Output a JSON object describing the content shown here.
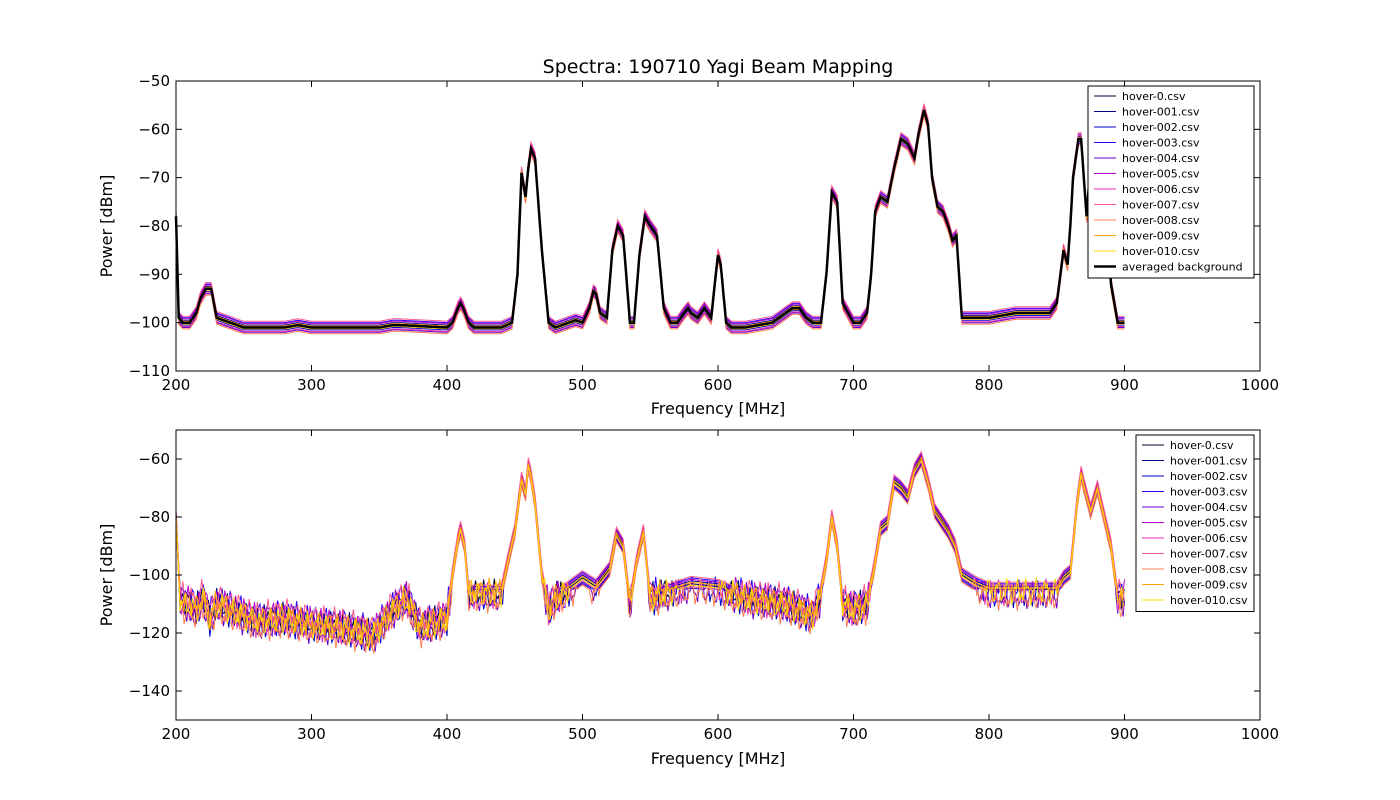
{
  "chart_data": [
    {
      "type": "line",
      "title": "Spectra: 190710 Yagi Beam Mapping",
      "xlabel": "Frequency [MHz]",
      "ylabel": "Power [dBm]",
      "xlim": [
        200,
        1000
      ],
      "ylim": [
        -110,
        -50
      ],
      "xticks": [
        200,
        300,
        400,
        500,
        600,
        700,
        800,
        900,
        1000
      ],
      "yticks": [
        -110,
        -100,
        -90,
        -80,
        -70,
        -60,
        -50
      ],
      "legend_position": "upper-right",
      "grid": false,
      "series": [
        {
          "name": "hover-0.csv",
          "color": "#000033",
          "offset": 0,
          "width": 1
        },
        {
          "name": "hover-001.csv",
          "color": "#00008b",
          "offset": 0.5,
          "width": 1
        },
        {
          "name": "hover-002.csv",
          "color": "#0000cc",
          "offset": -0.5,
          "width": 1
        },
        {
          "name": "hover-003.csv",
          "color": "#2a00ff",
          "offset": 1,
          "width": 1
        },
        {
          "name": "hover-004.csv",
          "color": "#6600cc",
          "offset": -1,
          "width": 1
        },
        {
          "name": "hover-005.csv",
          "color": "#b300cc",
          "offset": 0.8,
          "width": 1
        },
        {
          "name": "hover-006.csv",
          "color": "#e632b4",
          "offset": -0.8,
          "width": 1
        },
        {
          "name": "hover-007.csv",
          "color": "#ff5a8c",
          "offset": 1.3,
          "width": 1
        },
        {
          "name": "hover-008.csv",
          "color": "#ff7f50",
          "offset": -1.3,
          "width": 1
        },
        {
          "name": "hover-009.csv",
          "color": "#ffa500",
          "offset": 0.3,
          "width": 1
        },
        {
          "name": "hover-010.csv",
          "color": "#ffd700",
          "offset": -0.3,
          "width": 1
        },
        {
          "name": "averaged background",
          "color": "#000000",
          "offset": 0,
          "width": 2.5
        }
      ],
      "base_curve": {
        "x": [
          200,
          202,
          205,
          210,
          215,
          218,
          222,
          226,
          230,
          240,
          250,
          280,
          290,
          300,
          350,
          360,
          365,
          400,
          404,
          408,
          410,
          412,
          416,
          420,
          440,
          448,
          452,
          455,
          458,
          460,
          462,
          465,
          470,
          475,
          480,
          490,
          495,
          500,
          505,
          508,
          510,
          513,
          518,
          522,
          526,
          530,
          535,
          538,
          542,
          546,
          550,
          555,
          560,
          565,
          570,
          575,
          578,
          580,
          585,
          590,
          595,
          598,
          600,
          602,
          606,
          610,
          620,
          640,
          650,
          655,
          660,
          665,
          670,
          676,
          680,
          684,
          688,
          692,
          700,
          705,
          710,
          713,
          716,
          720,
          725,
          730,
          735,
          740,
          745,
          748,
          752,
          755,
          758,
          762,
          766,
          770,
          773,
          776,
          780,
          785,
          800,
          820,
          845,
          850,
          855,
          858,
          860,
          862,
          866,
          868,
          872,
          876,
          880,
          885,
          890,
          895,
          900
        ],
        "y": [
          -78,
          -99,
          -100,
          -100,
          -98,
          -95,
          -93,
          -93,
          -99,
          -100,
          -101,
          -101,
          -100.5,
          -101,
          -101,
          -100.5,
          -100.5,
          -101,
          -100,
          -97,
          -96,
          -97,
          -100,
          -101,
          -101,
          -100,
          -90,
          -69,
          -74,
          -68,
          -64,
          -66,
          -85,
          -100,
          -101,
          -100,
          -99.5,
          -100,
          -97,
          -93.5,
          -94,
          -98,
          -99,
          -85,
          -80,
          -82,
          -100,
          -100,
          -86,
          -78,
          -80,
          -82,
          -97,
          -100,
          -100,
          -98,
          -97,
          -98,
          -99,
          -97,
          -99,
          -91,
          -86,
          -88,
          -100,
          -101,
          -101,
          -100,
          -98,
          -97,
          -97,
          -99,
          -100,
          -100,
          -90,
          -73,
          -75,
          -96,
          -100,
          -100,
          -98,
          -90,
          -77,
          -74,
          -75,
          -68,
          -62,
          -63,
          -66,
          -61,
          -56,
          -59,
          -70,
          -76,
          -77,
          -80,
          -83,
          -82,
          -99,
          -99,
          -99,
          -98,
          -98,
          -96,
          -85,
          -88,
          -80,
          -70,
          -62,
          -62,
          -78,
          -63,
          -65,
          -72,
          -92,
          -100,
          -100
        ]
      }
    },
    {
      "type": "line",
      "xlabel": "Frequency [MHz]",
      "ylabel": "Power [dBm]",
      "xlim": [
        200,
        1000
      ],
      "ylim": [
        -150,
        -50
      ],
      "xticks": [
        200,
        300,
        400,
        500,
        600,
        700,
        800,
        900,
        1000
      ],
      "yticks": [
        -140,
        -120,
        -100,
        -80,
        -60
      ],
      "legend_position": "upper-right",
      "grid": false,
      "series": [
        {
          "name": "hover-0.csv",
          "color": "#000033",
          "offset": 0
        },
        {
          "name": "hover-001.csv",
          "color": "#00008b",
          "offset": 1
        },
        {
          "name": "hover-002.csv",
          "color": "#0000cc",
          "offset": -1.5
        },
        {
          "name": "hover-003.csv",
          "color": "#2a00ff",
          "offset": 2
        },
        {
          "name": "hover-004.csv",
          "color": "#6600cc",
          "offset": -2
        },
        {
          "name": "hover-005.csv",
          "color": "#b300cc",
          "offset": 1.5
        },
        {
          "name": "hover-006.csv",
          "color": "#e632b4",
          "offset": -1
        },
        {
          "name": "hover-007.csv",
          "color": "#ff5a8c",
          "offset": 2.5
        },
        {
          "name": "hover-008.csv",
          "color": "#ff7f50",
          "offset": -2.5
        },
        {
          "name": "hover-009.csv",
          "color": "#ffa500",
          "offset": 0.5
        },
        {
          "name": "hover-010.csv",
          "color": "#ffd700",
          "offset": -0.5
        }
      ],
      "base_curve": {
        "x": [
          200,
          203,
          206,
          210,
          215,
          220,
          225,
          230,
          240,
          260,
          280,
          300,
          320,
          340,
          345,
          360,
          370,
          380,
          400,
          404,
          408,
          410,
          413,
          416,
          440,
          445,
          450,
          455,
          458,
          460,
          462,
          465,
          470,
          475,
          480,
          500,
          510,
          520,
          525,
          530,
          535,
          540,
          545,
          550,
          560,
          580,
          600,
          620,
          650,
          670,
          675,
          680,
          684,
          688,
          692,
          700,
          710,
          715,
          720,
          725,
          730,
          735,
          740,
          745,
          750,
          755,
          760,
          770,
          775,
          780,
          790,
          800,
          850,
          855,
          860,
          865,
          868,
          870,
          875,
          880,
          885,
          890,
          895,
          900
        ],
        "y": [
          -80,
          -108,
          -110,
          -110,
          -112,
          -108,
          -115,
          -110,
          -112,
          -116,
          -115,
          -117,
          -118,
          -120,
          -121,
          -112,
          -108,
          -118,
          -115,
          -100,
          -88,
          -84,
          -90,
          -106,
          -106,
          -95,
          -85,
          -67,
          -72,
          -62,
          -66,
          -75,
          -100,
          -112,
          -108,
          -101,
          -104,
          -98,
          -86,
          -90,
          -110,
          -95,
          -85,
          -108,
          -106,
          -103,
          -104,
          -108,
          -110,
          -114,
          -108,
          -95,
          -80,
          -90,
          -110,
          -112,
          -110,
          -98,
          -84,
          -82,
          -68,
          -70,
          -73,
          -64,
          -60,
          -68,
          -78,
          -85,
          -90,
          -100,
          -103,
          -105,
          -105,
          -101,
          -99,
          -75,
          -65,
          -69,
          -78,
          -70,
          -80,
          -90,
          -108,
          -108
        ]
      }
    }
  ]
}
